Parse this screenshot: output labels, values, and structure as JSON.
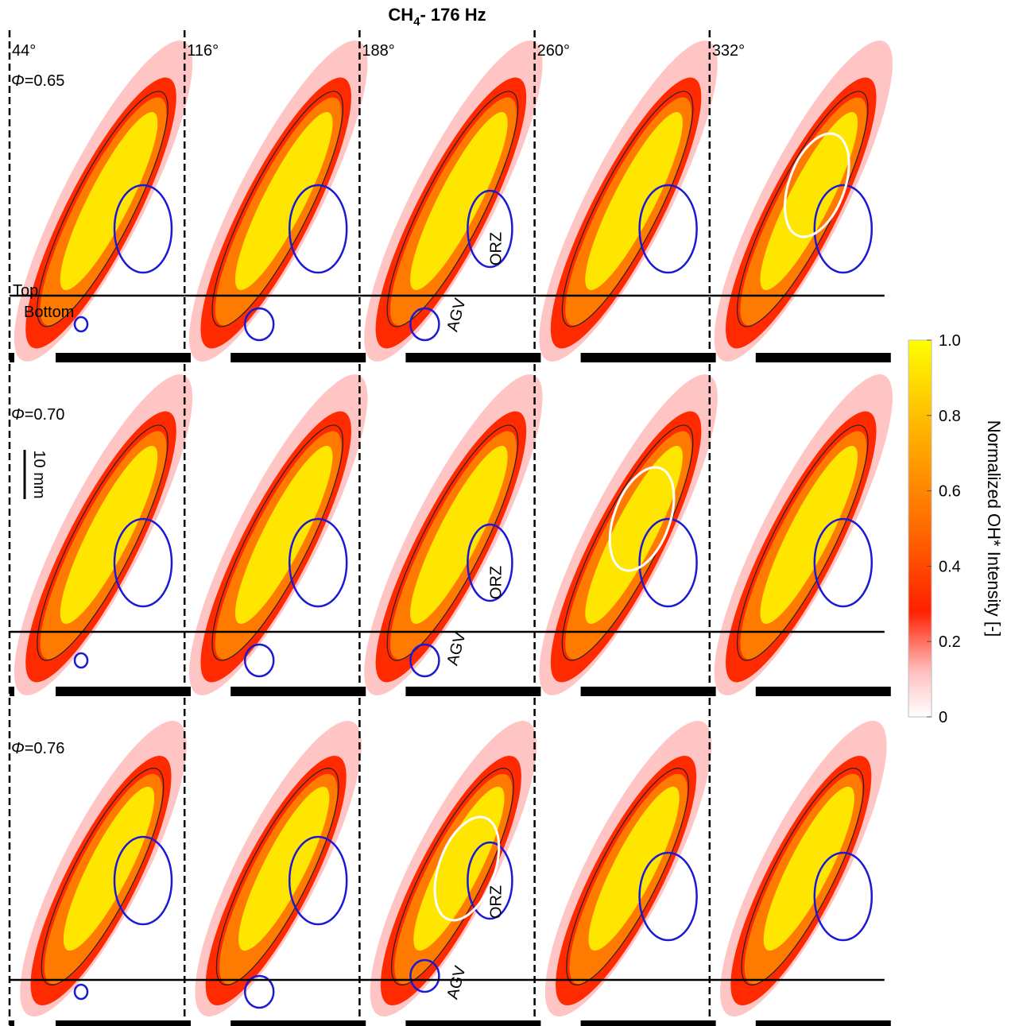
{
  "title": {
    "main": "CH",
    "subscript": "4",
    "rest": "- 176 Hz"
  },
  "columns": [
    "44°",
    "116°",
    "188°",
    "260°",
    "332°"
  ],
  "rows": [
    {
      "symbol": "Φ",
      "value": "=0.65"
    },
    {
      "symbol": "Φ",
      "value": "=0.70"
    },
    {
      "symbol": "Φ",
      "value": "=0.76"
    }
  ],
  "annotations": {
    "top": "Top",
    "bottom": "Bottom",
    "scale": "10 mm",
    "orz": [
      "ORZ",
      "ORZ",
      "ORZ"
    ],
    "agv": [
      "AGV",
      "AGV",
      "AGV"
    ]
  },
  "colorbar": {
    "label": "Normalized OH* Intensity [-]",
    "ticks": [
      "1.0",
      "0.8",
      "0.6",
      "0.4",
      "0.2",
      "0"
    ]
  }
}
